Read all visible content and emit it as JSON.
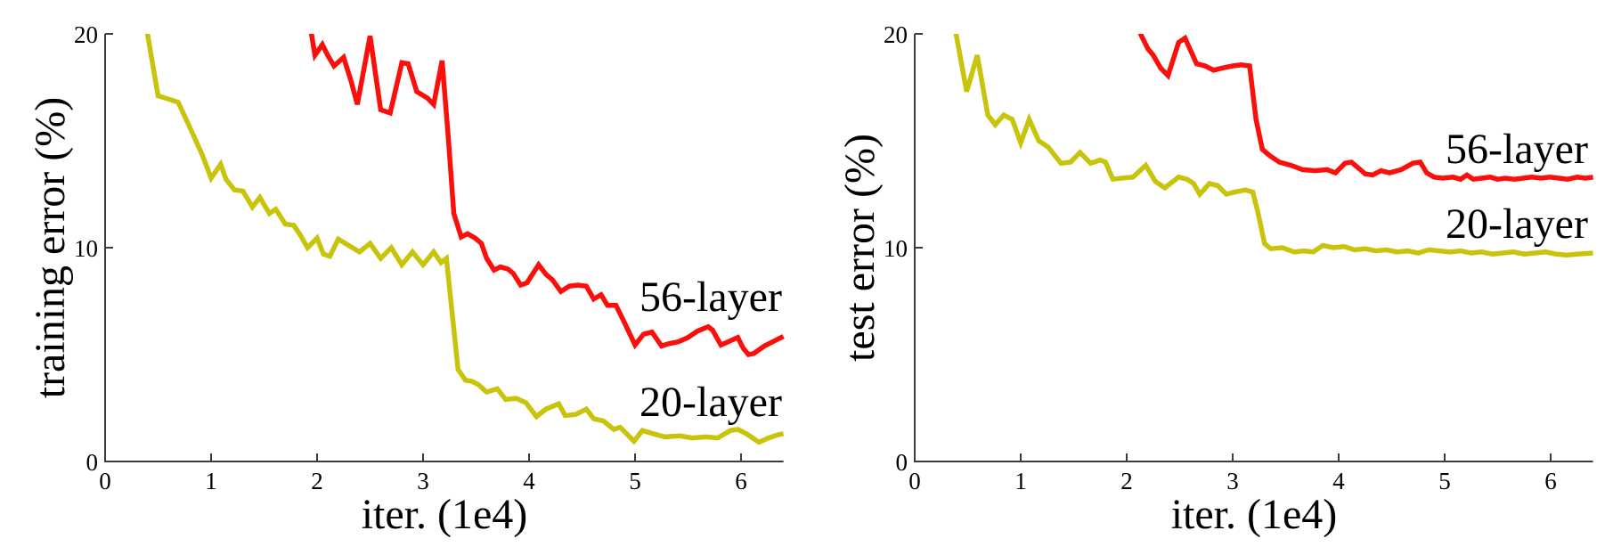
{
  "figure": {
    "background": "#ffffff",
    "axis_color": "#3c3c3c",
    "text_color": "#000000"
  },
  "chart_data": [
    {
      "id": "training",
      "type": "line",
      "title": "",
      "xlabel": "iter. (1e4)",
      "ylabel": "training error (%)",
      "xlim": [
        0,
        6.4
      ],
      "ylim": [
        0,
        20
      ],
      "xticks": [
        0,
        1,
        2,
        3,
        4,
        5,
        6
      ],
      "xtick_labels": [
        "0",
        "1",
        "2",
        "3",
        "4",
        "5",
        "6"
      ],
      "yticks": [
        0,
        10,
        20
      ],
      "ytick_labels": [
        "0",
        "10",
        "20"
      ],
      "grid": false,
      "legend_position": "inline-annotations",
      "series": [
        {
          "name": "56-layer",
          "color": "#fa0f0b",
          "points": [
            [
              1.9,
              21.5
            ],
            [
              1.93,
              20.5
            ],
            [
              1.98,
              19.0
            ],
            [
              2.05,
              19.5
            ],
            [
              2.1,
              19.0
            ],
            [
              2.16,
              18.5
            ],
            [
              2.25,
              18.9
            ],
            [
              2.32,
              17.8
            ],
            [
              2.38,
              16.7
            ],
            [
              2.5,
              19.9
            ],
            [
              2.6,
              16.45
            ],
            [
              2.69,
              16.3
            ],
            [
              2.8,
              18.65
            ],
            [
              2.86,
              18.6
            ],
            [
              2.94,
              17.3
            ],
            [
              3.04,
              17.0
            ],
            [
              3.1,
              16.7
            ],
            [
              3.18,
              18.75
            ],
            [
              3.24,
              15.0
            ],
            [
              3.29,
              11.6
            ],
            [
              3.36,
              10.5
            ],
            [
              3.42,
              10.65
            ],
            [
              3.49,
              10.45
            ],
            [
              3.55,
              10.2
            ],
            [
              3.6,
              9.5
            ],
            [
              3.67,
              8.95
            ],
            [
              3.73,
              9.1
            ],
            [
              3.8,
              9.0
            ],
            [
              3.85,
              8.8
            ],
            [
              3.92,
              8.25
            ],
            [
              3.98,
              8.35
            ],
            [
              4.09,
              9.2
            ],
            [
              4.16,
              8.75
            ],
            [
              4.22,
              8.5
            ],
            [
              4.3,
              7.95
            ],
            [
              4.38,
              8.2
            ],
            [
              4.46,
              8.25
            ],
            [
              4.54,
              8.2
            ],
            [
              4.61,
              7.6
            ],
            [
              4.68,
              7.8
            ],
            [
              4.74,
              7.3
            ],
            [
              4.82,
              7.3
            ],
            [
              4.89,
              6.6
            ],
            [
              5.0,
              5.45
            ],
            [
              5.08,
              5.95
            ],
            [
              5.16,
              6.05
            ],
            [
              5.25,
              5.4
            ],
            [
              5.31,
              5.5
            ],
            [
              5.41,
              5.6
            ],
            [
              5.5,
              5.8
            ],
            [
              5.59,
              6.1
            ],
            [
              5.69,
              6.3
            ],
            [
              5.73,
              6.15
            ],
            [
              5.81,
              5.45
            ],
            [
              5.88,
              5.6
            ],
            [
              5.97,
              5.8
            ],
            [
              6.02,
              5.3
            ],
            [
              6.07,
              5.0
            ],
            [
              6.12,
              5.05
            ],
            [
              6.22,
              5.4
            ],
            [
              6.3,
              5.6
            ],
            [
              6.4,
              5.85
            ]
          ]
        },
        {
          "name": "20-layer",
          "color": "#c8c40c",
          "points": [
            [
              0.33,
              21.5
            ],
            [
              0.4,
              20.0
            ],
            [
              0.5,
              17.1
            ],
            [
              0.6,
              16.95
            ],
            [
              0.69,
              16.8
            ],
            [
              0.82,
              15.4
            ],
            [
              0.92,
              14.3
            ],
            [
              1.0,
              13.25
            ],
            [
              1.09,
              13.9
            ],
            [
              1.14,
              13.2
            ],
            [
              1.22,
              12.7
            ],
            [
              1.3,
              12.65
            ],
            [
              1.39,
              11.9
            ],
            [
              1.46,
              12.35
            ],
            [
              1.55,
              11.6
            ],
            [
              1.61,
              11.8
            ],
            [
              1.7,
              11.1
            ],
            [
              1.78,
              11.05
            ],
            [
              1.84,
              10.6
            ],
            [
              1.91,
              10.0
            ],
            [
              2.0,
              10.45
            ],
            [
              2.06,
              9.7
            ],
            [
              2.12,
              9.6
            ],
            [
              2.2,
              10.4
            ],
            [
              2.3,
              10.1
            ],
            [
              2.4,
              9.8
            ],
            [
              2.5,
              10.2
            ],
            [
              2.6,
              9.5
            ],
            [
              2.7,
              10.0
            ],
            [
              2.8,
              9.2
            ],
            [
              2.9,
              9.8
            ],
            [
              3.0,
              9.2
            ],
            [
              3.1,
              9.8
            ],
            [
              3.17,
              9.3
            ],
            [
              3.22,
              9.5
            ],
            [
              3.33,
              4.3
            ],
            [
              3.4,
              3.8
            ],
            [
              3.46,
              3.75
            ],
            [
              3.52,
              3.6
            ],
            [
              3.6,
              3.25
            ],
            [
              3.7,
              3.4
            ],
            [
              3.78,
              2.9
            ],
            [
              3.88,
              2.95
            ],
            [
              3.97,
              2.75
            ],
            [
              4.07,
              2.1
            ],
            [
              4.16,
              2.45
            ],
            [
              4.28,
              2.7
            ],
            [
              4.34,
              2.15
            ],
            [
              4.44,
              2.2
            ],
            [
              4.54,
              2.45
            ],
            [
              4.61,
              2.0
            ],
            [
              4.7,
              1.9
            ],
            [
              4.8,
              1.5
            ],
            [
              4.86,
              1.6
            ],
            [
              4.99,
              0.95
            ],
            [
              5.07,
              1.45
            ],
            [
              5.17,
              1.3
            ],
            [
              5.28,
              1.15
            ],
            [
              5.42,
              1.2
            ],
            [
              5.54,
              1.1
            ],
            [
              5.67,
              1.15
            ],
            [
              5.78,
              1.1
            ],
            [
              5.9,
              1.45
            ],
            [
              5.97,
              1.5
            ],
            [
              6.05,
              1.3
            ],
            [
              6.17,
              0.9
            ],
            [
              6.26,
              1.1
            ],
            [
              6.35,
              1.25
            ],
            [
              6.4,
              1.3
            ]
          ]
        }
      ]
    },
    {
      "id": "test",
      "type": "line",
      "title": "",
      "xlabel": "iter. (1e4)",
      "ylabel": "test error (%)",
      "xlim": [
        0,
        6.4
      ],
      "ylim": [
        0,
        20
      ],
      "xticks": [
        0,
        1,
        2,
        3,
        4,
        5,
        6
      ],
      "xtick_labels": [
        "0",
        "1",
        "2",
        "3",
        "4",
        "5",
        "6"
      ],
      "yticks": [
        0,
        10,
        20
      ],
      "ytick_labels": [
        "0",
        "10",
        "20"
      ],
      "grid": false,
      "legend_position": "inline-annotations",
      "series": [
        {
          "name": "56-layer",
          "color": "#fa0f0b",
          "points": [
            [
              2.08,
              21.5
            ],
            [
              2.13,
              20.0
            ],
            [
              2.2,
              19.3
            ],
            [
              2.25,
              19.0
            ],
            [
              2.32,
              18.4
            ],
            [
              2.39,
              18.05
            ],
            [
              2.49,
              19.6
            ],
            [
              2.55,
              19.8
            ],
            [
              2.66,
              18.6
            ],
            [
              2.74,
              18.5
            ],
            [
              2.82,
              18.3
            ],
            [
              2.9,
              18.4
            ],
            [
              3.0,
              18.5
            ],
            [
              3.08,
              18.55
            ],
            [
              3.16,
              18.5
            ],
            [
              3.22,
              16.0
            ],
            [
              3.28,
              14.6
            ],
            [
              3.35,
              14.3
            ],
            [
              3.44,
              14.0
            ],
            [
              3.55,
              13.85
            ],
            [
              3.66,
              13.65
            ],
            [
              3.78,
              13.6
            ],
            [
              3.89,
              13.65
            ],
            [
              3.97,
              13.5
            ],
            [
              4.06,
              13.95
            ],
            [
              4.12,
              14.0
            ],
            [
              4.18,
              13.75
            ],
            [
              4.25,
              13.45
            ],
            [
              4.32,
              13.4
            ],
            [
              4.4,
              13.6
            ],
            [
              4.48,
              13.5
            ],
            [
              4.59,
              13.65
            ],
            [
              4.7,
              13.95
            ],
            [
              4.77,
              14.0
            ],
            [
              4.83,
              13.5
            ],
            [
              4.9,
              13.3
            ],
            [
              4.98,
              13.25
            ],
            [
              5.08,
              13.3
            ],
            [
              5.15,
              13.2
            ],
            [
              5.21,
              13.4
            ],
            [
              5.27,
              13.2
            ],
            [
              5.35,
              13.25
            ],
            [
              5.43,
              13.3
            ],
            [
              5.5,
              13.2
            ],
            [
              5.57,
              13.25
            ],
            [
              5.66,
              13.2
            ],
            [
              5.74,
              13.25
            ],
            [
              5.82,
              13.3
            ],
            [
              5.91,
              13.25
            ],
            [
              5.99,
              13.3
            ],
            [
              6.08,
              13.25
            ],
            [
              6.16,
              13.2
            ],
            [
              6.25,
              13.3
            ],
            [
              6.33,
              13.25
            ],
            [
              6.4,
              13.3
            ]
          ]
        },
        {
          "name": "20-layer",
          "color": "#c8c40c",
          "points": [
            [
              0.33,
              21.5
            ],
            [
              0.39,
              20.0
            ],
            [
              0.49,
              17.3
            ],
            [
              0.59,
              19.0
            ],
            [
              0.69,
              16.2
            ],
            [
              0.76,
              15.75
            ],
            [
              0.84,
              16.2
            ],
            [
              0.92,
              16.0
            ],
            [
              1.0,
              14.9
            ],
            [
              1.08,
              16.0
            ],
            [
              1.17,
              15.0
            ],
            [
              1.26,
              14.7
            ],
            [
              1.38,
              13.95
            ],
            [
              1.47,
              14.0
            ],
            [
              1.56,
              14.45
            ],
            [
              1.66,
              13.95
            ],
            [
              1.75,
              14.1
            ],
            [
              1.8,
              14.0
            ],
            [
              1.87,
              13.2
            ],
            [
              1.95,
              13.25
            ],
            [
              2.06,
              13.3
            ],
            [
              2.18,
              13.85
            ],
            [
              2.27,
              13.1
            ],
            [
              2.36,
              12.8
            ],
            [
              2.49,
              13.3
            ],
            [
              2.57,
              13.2
            ],
            [
              2.63,
              13.0
            ],
            [
              2.69,
              12.5
            ],
            [
              2.78,
              13.0
            ],
            [
              2.86,
              12.9
            ],
            [
              2.94,
              12.5
            ],
            [
              3.02,
              12.6
            ],
            [
              3.12,
              12.7
            ],
            [
              3.19,
              12.6
            ],
            [
              3.24,
              11.6
            ],
            [
              3.3,
              10.2
            ],
            [
              3.36,
              9.95
            ],
            [
              3.47,
              10.0
            ],
            [
              3.58,
              9.8
            ],
            [
              3.67,
              9.85
            ],
            [
              3.76,
              9.8
            ],
            [
              3.85,
              10.1
            ],
            [
              3.95,
              10.0
            ],
            [
              4.05,
              10.05
            ],
            [
              4.15,
              9.9
            ],
            [
              4.25,
              9.95
            ],
            [
              4.35,
              9.85
            ],
            [
              4.45,
              9.9
            ],
            [
              4.55,
              9.8
            ],
            [
              4.65,
              9.85
            ],
            [
              4.75,
              9.75
            ],
            [
              4.85,
              9.9
            ],
            [
              4.95,
              9.85
            ],
            [
              5.05,
              9.8
            ],
            [
              5.15,
              9.85
            ],
            [
              5.25,
              9.75
            ],
            [
              5.35,
              9.8
            ],
            [
              5.45,
              9.7
            ],
            [
              5.55,
              9.75
            ],
            [
              5.65,
              9.8
            ],
            [
              5.75,
              9.7
            ],
            [
              5.85,
              9.75
            ],
            [
              5.95,
              9.8
            ],
            [
              6.05,
              9.7
            ],
            [
              6.15,
              9.65
            ],
            [
              6.25,
              9.7
            ],
            [
              6.4,
              9.75
            ]
          ]
        }
      ]
    }
  ]
}
